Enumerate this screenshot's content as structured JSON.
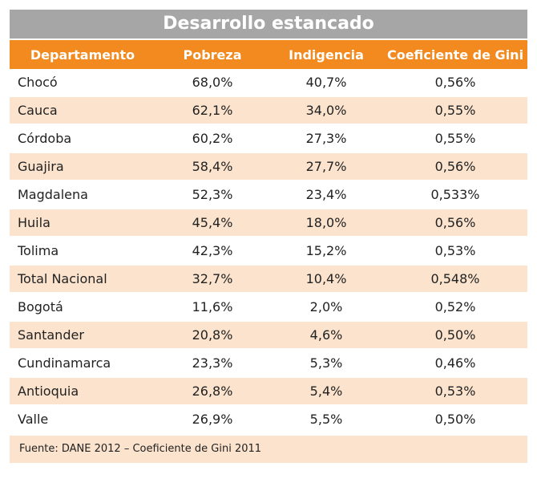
{
  "chart_data": {
    "type": "table",
    "title": "Desarrollo estancado",
    "columns": [
      "Departamento",
      "Pobreza",
      "Indigencia",
      "Coeficiente de Gini"
    ],
    "rows": [
      [
        "Chocó",
        "68,0%",
        "40,7%",
        "0,56%"
      ],
      [
        "Cauca",
        "62,1%",
        "34,0%",
        "0,55%"
      ],
      [
        "Córdoba",
        "60,2%",
        "27,3%",
        "0,55%"
      ],
      [
        "Guajira",
        "58,4%",
        "27,7%",
        "0,56%"
      ],
      [
        "Magdalena",
        "52,3%",
        "23,4%",
        "0,533%"
      ],
      [
        "Huila",
        "45,4%",
        "18,0%",
        "0,56%"
      ],
      [
        "Tolima",
        "42,3%",
        "15,2%",
        "0,53%"
      ],
      [
        "Total Nacional",
        "32,7%",
        "10,4%",
        "0,548%"
      ],
      [
        "Bogotá",
        "11,6%",
        "2,0%",
        "0,52%"
      ],
      [
        "Santander",
        "20,8%",
        "4,6%",
        "0,50%"
      ],
      [
        "Cundinamarca",
        "23,3%",
        "5,3%",
        "0,46%"
      ],
      [
        "Antioquia",
        "26,8%",
        "5,4%",
        "0,53%"
      ],
      [
        "Valle",
        "26,9%",
        "5,5%",
        "0,50%"
      ]
    ],
    "source": "Fuente: DANE 2012 – Coeficiente de Gini 2011"
  },
  "colors": {
    "title_bg": "#a6a6a6",
    "header_bg": "#f28a1f",
    "stripe_bg": "#fbe3cd"
  }
}
